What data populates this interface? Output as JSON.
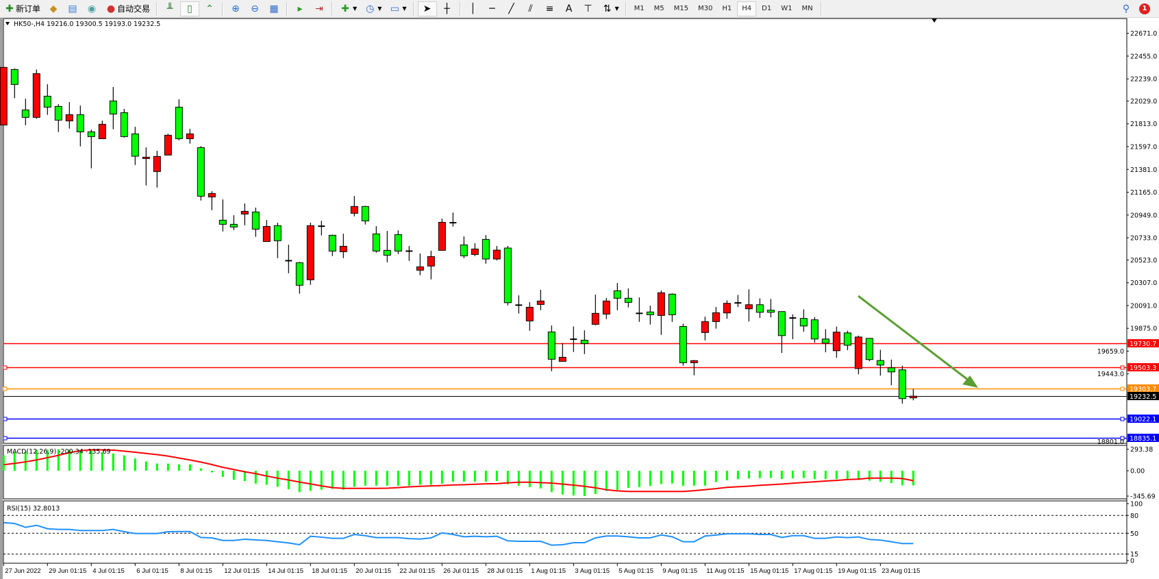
{
  "toolbar": {
    "new_order_label": "新订单",
    "auto_trading_label": "自动交易",
    "icons": [
      "new-order-icon",
      "market-watch-icon",
      "navigator-icon",
      "signals-icon",
      "auto-trading-icon",
      "bar-chart-icon",
      "candlestick-icon",
      "line-chart-icon",
      "zoom-in-icon",
      "zoom-out-icon",
      "tile-windows-icon",
      "autoscroll-icon",
      "chart-shift-icon",
      "indicators-icon",
      "periods-icon",
      "templates-icon",
      "cursor-icon",
      "crosshair-icon",
      "vertical-line-icon",
      "horizontal-line-icon",
      "trendline-icon",
      "equidistant-channel-icon",
      "fibonacci-icon",
      "text-icon",
      "text-label-icon",
      "arrows-icon"
    ],
    "text_tool": "A",
    "timeframes": [
      "M1",
      "M5",
      "M15",
      "M30",
      "H1",
      "H4",
      "D1",
      "W1",
      "MN"
    ],
    "active_timeframe": "H4",
    "notification_count": "1"
  },
  "chart_data": {
    "type": "candlestick",
    "symbol_info": "HK50-,H4  19216.0 19300.5 19193.0 19232.5",
    "bull_color": "#ff0000",
    "bear_color": "#00ff00",
    "price_axis_labels": [
      "22671.0",
      "22455.0",
      "22239.0",
      "22029.0",
      "21813.0",
      "21597.0",
      "21381.0",
      "21165.0",
      "20949.0",
      "20733.0",
      "20523.0",
      "20307.0",
      "20091.0",
      "19875.0",
      "19659.0",
      "19443.0",
      "18801.0"
    ],
    "ylim": [
      18784,
      22805
    ],
    "ohlc": [
      [
        21802,
        22348,
        21802,
        22348
      ],
      [
        22328,
        22337,
        22056,
        22186
      ],
      [
        21945,
        22051,
        21800,
        21874
      ],
      [
        21874,
        22328,
        21861,
        22289
      ],
      [
        22075,
        22188,
        21898,
        21971
      ],
      [
        21978,
        21999,
        21735,
        21848
      ],
      [
        21841,
        22019,
        21768,
        21900
      ],
      [
        21900,
        21986,
        21599,
        21737
      ],
      [
        21737,
        21759,
        21391,
        21692
      ],
      [
        21672,
        21843,
        21672,
        21809
      ],
      [
        22030,
        22162,
        21761,
        21906
      ],
      [
        21919,
        21954,
        21683,
        21692
      ],
      [
        21718,
        21785,
        21423,
        21506
      ],
      [
        21484,
        21590,
        21229,
        21497
      ],
      [
        21361,
        21558,
        21209,
        21504
      ],
      [
        21517,
        21718,
        21517,
        21705
      ],
      [
        21971,
        22045,
        21657,
        21672
      ],
      [
        21672,
        21765,
        21625,
        21718
      ],
      [
        21588,
        21601,
        21086,
        21127
      ],
      [
        21120,
        21174,
        20995,
        21153
      ],
      [
        20900,
        21097,
        20793,
        20861
      ],
      [
        20861,
        20947,
        20806,
        20835
      ],
      [
        20958,
        21058,
        20852,
        20984
      ],
      [
        20978,
        21019,
        20742,
        20815
      ],
      [
        20698,
        20902,
        20698,
        20841
      ],
      [
        20848,
        20876,
        20540,
        20705
      ],
      [
        20516,
        20668,
        20397,
        20516
      ],
      [
        20497,
        20504,
        20203,
        20283
      ],
      [
        20335,
        20876,
        20287,
        20848
      ],
      [
        20843,
        20895,
        20755,
        20843
      ],
      [
        20757,
        20763,
        20560,
        20607
      ],
      [
        20601,
        20772,
        20540,
        20653
      ],
      [
        20965,
        21129,
        20936,
        21030
      ],
      [
        21030,
        21036,
        20859,
        20893
      ],
      [
        20770,
        20843,
        20592,
        20607
      ],
      [
        20614,
        20798,
        20501,
        20568
      ],
      [
        20763,
        20804,
        20579,
        20607
      ],
      [
        20607,
        20655,
        20514,
        20607
      ],
      [
        20426,
        20584,
        20378,
        20458
      ],
      [
        20465,
        20610,
        20339,
        20555
      ],
      [
        20614,
        20915,
        20614,
        20880
      ],
      [
        20876,
        20973,
        20839,
        20876
      ],
      [
        20666,
        20746,
        20540,
        20562
      ],
      [
        20575,
        20681,
        20560,
        20627
      ],
      [
        20718,
        20759,
        20488,
        20532
      ],
      [
        20532,
        20656,
        20519,
        20616
      ],
      [
        20636,
        20656,
        20092,
        20118
      ],
      [
        20095,
        20188,
        20015,
        20095
      ],
      [
        19945,
        20123,
        19852,
        20075
      ],
      [
        20101,
        20240,
        20047,
        20134
      ],
      [
        19841,
        19902,
        19469,
        19582
      ],
      [
        19562,
        19735,
        19562,
        19601
      ],
      [
        19772,
        19893,
        19651,
        19772
      ],
      [
        19763,
        19856,
        19631,
        19731
      ],
      [
        19913,
        20194,
        19904,
        20017
      ],
      [
        20010,
        20162,
        19963,
        20134
      ],
      [
        20231,
        20305,
        20047,
        20160
      ],
      [
        20160,
        20253,
        20073,
        20121
      ],
      [
        20017,
        20168,
        19937,
        20017
      ],
      [
        20030,
        20090,
        19911,
        20004
      ],
      [
        19997,
        20233,
        19813,
        20212
      ],
      [
        20199,
        20207,
        19937,
        20004
      ],
      [
        19893,
        19919,
        19521,
        19549
      ],
      [
        19549,
        19575,
        19430,
        19569
      ],
      [
        19835,
        19986,
        19761,
        19939
      ],
      [
        19939,
        20077,
        19872,
        20023
      ],
      [
        20021,
        20140,
        19966,
        20112
      ],
      [
        20116,
        20192,
        20077,
        20116
      ],
      [
        20060,
        20244,
        19940,
        20099
      ],
      [
        20099,
        20159,
        19973,
        20027
      ],
      [
        20047,
        20153,
        19979,
        20027
      ],
      [
        20034,
        20034,
        19642,
        19806
      ],
      [
        19973,
        20008,
        19772,
        19973
      ],
      [
        19969,
        20055,
        19843,
        19897
      ],
      [
        19956,
        19982,
        19739,
        19774
      ],
      [
        19774,
        19867,
        19648,
        19735
      ],
      [
        19663,
        19891,
        19596,
        19839
      ],
      [
        19832,
        19852,
        19668,
        19715
      ],
      [
        19494,
        19806,
        19440,
        19793
      ],
      [
        19780,
        19780,
        19564,
        19579
      ],
      [
        19570,
        19672,
        19427,
        19527
      ],
      [
        19501,
        19579,
        19336,
        19462
      ],
      [
        19482,
        19521,
        19161,
        19209
      ],
      [
        19216,
        19300.5,
        19193,
        19232.5
      ]
    ],
    "horizontal_lines": [
      {
        "price": 19730.7,
        "label": "19730.7",
        "color": "#ff0000",
        "handles": false
      },
      {
        "price": 19503.3,
        "label": "19503.3",
        "color": "#ff0000",
        "handles": true
      },
      {
        "price": 19303.7,
        "label": "19303.7",
        "color": "#ff8c00",
        "handles": true
      },
      {
        "price": 19232.5,
        "label": "19232.5",
        "color": "#000000",
        "handles": false
      },
      {
        "price": 19022.1,
        "label": "19022.1",
        "color": "#0000ff",
        "handles": true
      },
      {
        "price": 18835.1,
        "label": "18835.1",
        "color": "#0000ff",
        "handles": true
      }
    ],
    "trend_arrow_color": "#5a9e32",
    "x_labels": [
      "27 Jun 2022",
      "29 Jun 01:15",
      "4 Jul 01:15",
      "6 Jul 01:15",
      "8 Jul 01:15",
      "12 Jul 01:15",
      "14 Jul 01:15",
      "18 Jul 01:15",
      "20 Jul 01:15",
      "22 Jul 01:15",
      "26 Jul 01:15",
      "28 Jul 01:15",
      "1 Aug 01:15",
      "3 Aug 01:15",
      "5 Aug 01:15",
      "9 Aug 01:15",
      "11 Aug 01:15",
      "15 Aug 01:15",
      "17 Aug 01:15",
      "19 Aug 01:15",
      "23 Aug 01:15"
    ],
    "macd": {
      "label": "MACD(12,26,9) -200.34 -135.69",
      "axis_labels": [
        "293.38",
        "0.00",
        "-345.69"
      ],
      "ylim": [
        -345.69,
        293.38
      ],
      "histogram_color": "#00ff00",
      "signal_color": "#ff0000",
      "histogram": [
        210,
        250,
        260,
        285,
        285,
        293,
        285,
        278,
        275,
        250,
        235,
        210,
        167,
        127,
        98,
        98,
        88,
        88,
        33,
        -22,
        -84,
        -123,
        -140,
        -176,
        -191,
        -219,
        -252,
        -292,
        -275,
        -258,
        -247,
        -258,
        -219,
        -204,
        -204,
        -204,
        -204,
        -204,
        -191,
        -191,
        -176,
        -149,
        -149,
        -149,
        -149,
        -140,
        -185,
        -204,
        -224,
        -241,
        -292,
        -325,
        -336,
        -345,
        -317,
        -275,
        -261,
        -233,
        -224,
        -207,
        -182,
        -174,
        -207,
        -204,
        -204,
        -154,
        -131,
        -115,
        -106,
        -101,
        -98,
        -113,
        -106,
        -98,
        -113,
        -113,
        -115,
        -121,
        -126,
        -135,
        -149,
        -168,
        -199,
        -200.34
      ],
      "signal": [
        82,
        100,
        121,
        147,
        178,
        210,
        247,
        275,
        285,
        285,
        281,
        268,
        252,
        236,
        220,
        200,
        173,
        147,
        118,
        84,
        47,
        16,
        -14,
        -40,
        -72,
        -101,
        -126,
        -154,
        -180,
        -207,
        -230,
        -241,
        -241,
        -241,
        -241,
        -238,
        -230,
        -220,
        -213,
        -207,
        -202,
        -194,
        -190,
        -185,
        -179,
        -176,
        -165,
        -157,
        -157,
        -162,
        -168,
        -182,
        -196,
        -213,
        -232,
        -260,
        -274,
        -283,
        -283,
        -283,
        -283,
        -283,
        -283,
        -272,
        -258,
        -244,
        -227,
        -218,
        -210,
        -199,
        -190,
        -182,
        -171,
        -160,
        -151,
        -140,
        -132,
        -120,
        -115,
        -101,
        -101,
        -101,
        -106,
        -135.69
      ]
    },
    "rsi": {
      "label": "RSI(15) 32.8013",
      "axis_labels": [
        "100",
        "80",
        "50",
        "15",
        "0"
      ],
      "levels": [
        80,
        50,
        15
      ],
      "color": "#1e90ff",
      "values": [
        68,
        66.5,
        60,
        63.5,
        57.7,
        56.5,
        56.5,
        54.6,
        54.6,
        54.6,
        56.5,
        52.7,
        49.6,
        49.6,
        49.6,
        52.7,
        53,
        53,
        43,
        42.3,
        38,
        38,
        40,
        38.8,
        38,
        35.8,
        33.8,
        30.8,
        45,
        43.5,
        41.5,
        41.5,
        48,
        46,
        42.7,
        42.7,
        42.7,
        41,
        40.4,
        42.3,
        50.8,
        48,
        44.2,
        45,
        44.2,
        45,
        37.3,
        36.5,
        36.5,
        36.5,
        30,
        30.8,
        34.2,
        34.2,
        42.3,
        45.4,
        45.4,
        44.2,
        42.3,
        42.3,
        47.3,
        44.2,
        35.8,
        35.8,
        45.4,
        47,
        49.2,
        49.2,
        49.2,
        48,
        48,
        43,
        46,
        46,
        41.5,
        41.5,
        43.8,
        42.7,
        43.8,
        39.6,
        38.5,
        35.8,
        32.7,
        32.8013
      ]
    }
  }
}
